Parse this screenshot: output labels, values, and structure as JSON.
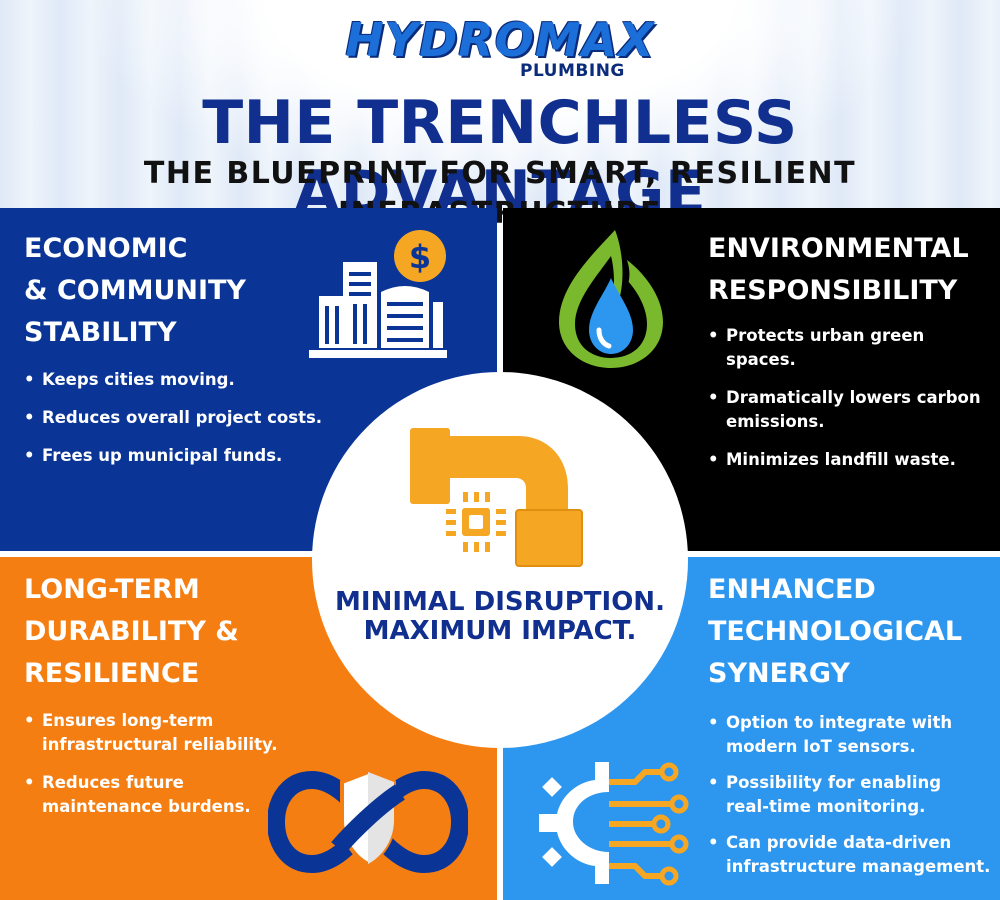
{
  "header": {
    "logo_main": "HYDROMAX",
    "logo_sub": "PLUMBING",
    "title": "THE TRENCHLESS ADVANTAGE",
    "subtitle": "THE BLUEPRINT FOR SMART, RESILIENT INFRASTRUCTURE"
  },
  "panels": {
    "economic": {
      "title_lines": [
        "ECONOMIC",
        "& COMMUNITY",
        "STABILITY"
      ],
      "bullets": [
        "Keeps cities moving.",
        "Reduces overall project costs.",
        "Frees up municipal funds."
      ],
      "icon": "city-buildings-dollar-icon",
      "color": "#0a3596"
    },
    "environmental": {
      "title_lines": [
        "ENVIRONMENTAL",
        "RESPONSIBILITY"
      ],
      "bullets_lines": [
        [
          "Protects urban green",
          "spaces."
        ],
        [
          "Dramatically lowers carbon",
          "emissions."
        ],
        [
          "Minimizes landfill waste."
        ]
      ],
      "icon": "water-drop-leaf-icon",
      "color": "#000000"
    },
    "durability": {
      "title_lines": [
        "LONG-TERM",
        "DURABILITY &",
        "RESILIENCE"
      ],
      "bullets_lines": [
        [
          "Ensures long-term",
          "infrastructural reliability."
        ],
        [
          "Reduces future",
          "maintenance burdens."
        ]
      ],
      "icon": "infinity-shield-icon",
      "color": "#f57e12"
    },
    "technology": {
      "title_lines": [
        "ENHANCED",
        "TECHNOLOGICAL",
        "SYNERGY"
      ],
      "bullets_lines": [
        [
          "Option to integrate with",
          "modern IoT sensors."
        ],
        [
          "Possibility for enabling",
          "real-time monitoring."
        ],
        [
          "Can provide data-driven",
          "infrastructure management."
        ]
      ],
      "icon": "gear-circuit-icon",
      "color": "#2d96ef"
    }
  },
  "center": {
    "line1": "MINIMAL DISRUPTION.",
    "line2": "MAXIMUM IMPACT.",
    "icon": "pipe-chip-icon"
  },
  "colors": {
    "navy": "#102f8f",
    "accent_yellow": "#f5a623",
    "leaf_green": "#7ab82d"
  },
  "dollar_symbol": "$"
}
